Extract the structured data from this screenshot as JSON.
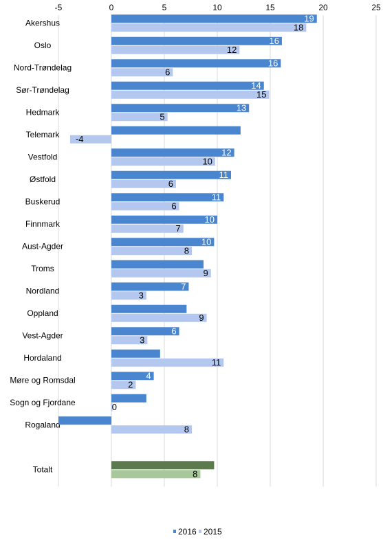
{
  "chart_data": {
    "type": "hbar",
    "categories": [
      "Akershus",
      "Oslo",
      "Nord-Trøndelag",
      "Sør-Trøndelag",
      "Hedmark",
      "Telemark",
      "Vestfold",
      "Østfold",
      "Buskerud",
      "Finnmark",
      "Aust-Agder",
      "Troms",
      "Nordland",
      "Oppland",
      "Vest-Agder",
      "Hordaland",
      "Møre og Romsdal",
      "Sogn og Fjordane",
      "Rogaland",
      null,
      "Totalt"
    ],
    "series": [
      {
        "name": "2016",
        "color": "#4a86d0",
        "colors": [
          "#4a86d0",
          "#4a86d0",
          "#4a86d0",
          "#4a86d0",
          "#4a86d0",
          "#4a86d0",
          "#4a86d0",
          "#4a86d0",
          "#4a86d0",
          "#4a86d0",
          "#4a86d0",
          "#4a86d0",
          "#4a86d0",
          "#4a86d0",
          "#4a86d0",
          "#4a86d0",
          "#4a86d0",
          "#4a86d0",
          "#4a86d0",
          null,
          "#5c7a4e"
        ],
        "values": [
          19.4,
          16.1,
          16.0,
          14.4,
          13.0,
          12.2,
          11.6,
          11.3,
          10.6,
          10.0,
          9.7,
          8.7,
          7.3,
          7.1,
          6.4,
          4.6,
          4.0,
          3.3,
          -5,
          null,
          9.7
        ],
        "value_labels": [
          "19",
          "16",
          "16",
          "14",
          "13",
          null,
          "12",
          "11",
          "11",
          "10",
          "10",
          null,
          "7",
          null,
          "6",
          null,
          "4",
          null,
          null,
          null,
          null
        ]
      },
      {
        "name": "2015",
        "color": "#b4c7ee",
        "colors": [
          "#b4c7ee",
          "#b4c7ee",
          "#b4c7ee",
          "#b4c7ee",
          "#b4c7ee",
          "#b4c7ee",
          "#b4c7ee",
          "#b4c7ee",
          "#b4c7ee",
          "#b4c7ee",
          "#b4c7ee",
          "#b4c7ee",
          "#b4c7ee",
          "#b4c7ee",
          "#b4c7ee",
          "#b4c7ee",
          "#b4c7ee",
          "#b4c7ee",
          "#b4c7ee",
          null,
          "#a8c79a"
        ],
        "values": [
          18.4,
          12.1,
          5.8,
          14.9,
          5.3,
          -3.9,
          9.8,
          6.1,
          6.4,
          6.8,
          7.6,
          9.4,
          3.3,
          9.0,
          3.4,
          10.6,
          2.3,
          0.1,
          7.6,
          null,
          8.4
        ],
        "value_labels": [
          "18",
          "12",
          "6",
          "15",
          "5",
          "-4",
          "10",
          "6",
          "6",
          "7",
          "8",
          "9",
          "3",
          "9",
          "3",
          "11",
          "2",
          "0",
          "8",
          null,
          "8"
        ]
      }
    ],
    "xlim": [
      -5,
      25
    ],
    "xticks": [
      -5,
      0,
      5,
      10,
      15,
      20,
      25
    ],
    "grid": true,
    "legend": "bottom"
  }
}
